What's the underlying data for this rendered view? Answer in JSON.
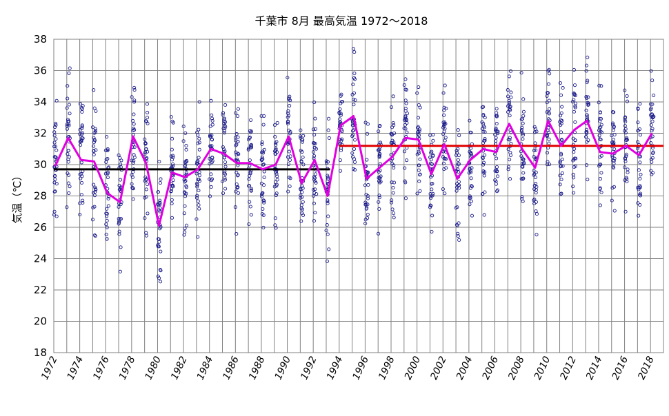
{
  "chart_data": {
    "type": "scatter",
    "title": "千葉市 8月 最高気温 1972～2018",
    "xlabel": "",
    "ylabel": "気温（℃）",
    "xlim": [
      1972,
      2019
    ],
    "ylim": [
      18,
      38
    ],
    "y_ticks": [
      18,
      20,
      22,
      24,
      26,
      28,
      30,
      32,
      34,
      36,
      38
    ],
    "x_ticks": [
      1972,
      1974,
      1976,
      1978,
      1980,
      1982,
      1984,
      1986,
      1988,
      1990,
      1992,
      1994,
      1996,
      1998,
      2000,
      2002,
      2004,
      2006,
      2008,
      2010,
      2012,
      2014,
      2016,
      2018
    ],
    "grid": true,
    "legend": "none",
    "colors": {
      "daily": "#1a1a8c",
      "monthly_mean": "#e000e0",
      "mean_1972_1993": "#000000",
      "mean_1994_2018": "#e00000"
    },
    "monthly_mean": {
      "x": [
        1972,
        1973,
        1974,
        1975,
        1976,
        1977,
        1978,
        1979,
        1980,
        1981,
        1982,
        1983,
        1984,
        1985,
        1986,
        1987,
        1988,
        1989,
        1990,
        1991,
        1992,
        1993,
        1994,
        1995,
        1996,
        1997,
        1998,
        1999,
        2000,
        2001,
        2002,
        2003,
        2004,
        2005,
        2006,
        2007,
        2008,
        2009,
        2010,
        2011,
        2012,
        2013,
        2014,
        2015,
        2016,
        2017,
        2018
      ],
      "values": [
        29.9,
        31.7,
        30.3,
        30.2,
        28.2,
        27.6,
        31.8,
        30.1,
        26.1,
        29.5,
        29.2,
        29.7,
        31.0,
        30.7,
        30.1,
        30.1,
        29.7,
        30.0,
        31.8,
        28.8,
        30.3,
        28.0,
        32.5,
        33.1,
        29.1,
        29.8,
        30.5,
        31.7,
        31.6,
        29.4,
        31.3,
        29.1,
        30.3,
        31.0,
        30.8,
        32.6,
        31.0,
        29.8,
        32.8,
        31.2,
        32.2,
        32.8,
        30.8,
        30.7,
        31.2,
        30.6,
        32.0
      ]
    },
    "period_means": [
      {
        "x": [
          1972,
          1993.3
        ],
        "value": 29.7
      },
      {
        "x": [
          1994,
          2019
        ],
        "value": 31.2
      }
    ]
  }
}
